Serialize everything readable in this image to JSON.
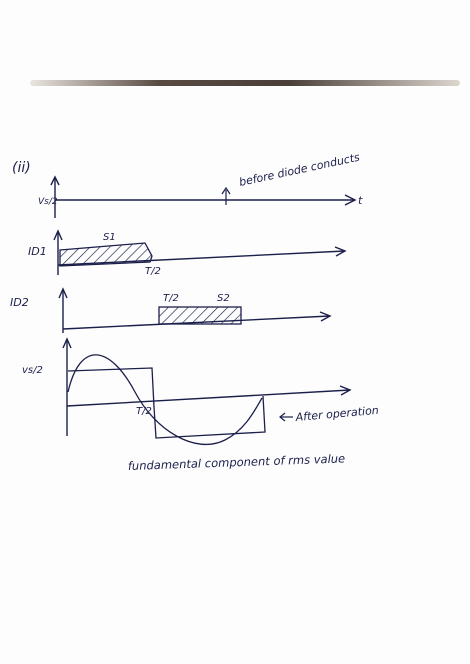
{
  "section_label": "(ii)",
  "note_before": "before diode conducts",
  "note_after": "After operation",
  "caption": "fundamental component of rms value",
  "axis_label_vs2_top": "Vs/2",
  "axis_label_id1": "ID1",
  "axis_label_id2": "ID2",
  "axis_label_vs2_bottom": "vs/2",
  "axis_end_t": "t",
  "pulse_s1": "S1",
  "pulse_s2": "S2",
  "mark_t2_id1": "T/2",
  "mark_t2_id2": "T/2",
  "mark_t2_vs": "T/2",
  "colors": {
    "ink": "#1b1f4a",
    "paper": "#fdfdfd"
  }
}
